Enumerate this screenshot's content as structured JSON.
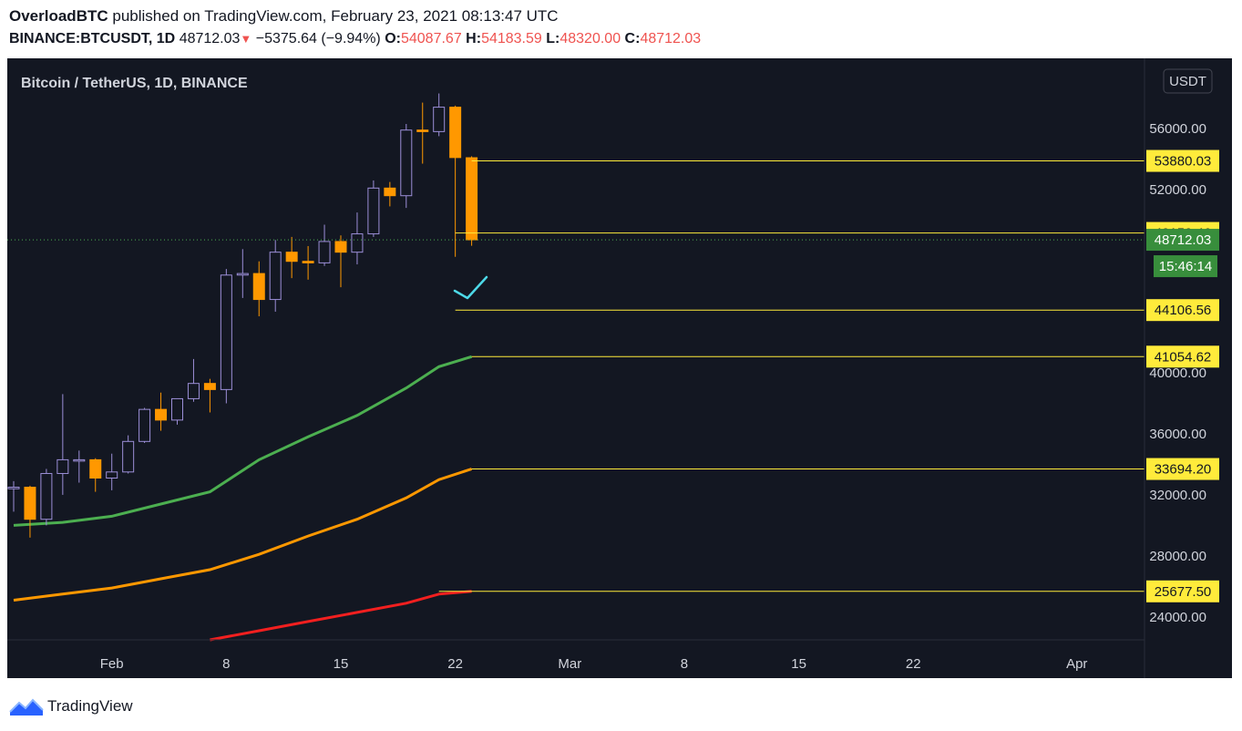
{
  "header": {
    "author": "OverloadBTC",
    "published": "published on TradingView.com, February 23, 2021 08:13:47 UTC",
    "symbol": "BINANCE:BTCUSDT, 1D",
    "last": "48712.03",
    "change": "−5375.64 (−9.94%)",
    "open_label": "O:",
    "open": "54087.67",
    "high_label": "H:",
    "high": "54183.59",
    "low_label": "L:",
    "low": "48320.00",
    "close_label": "C:",
    "close": "48712.03"
  },
  "footer": {
    "brand": "TradingView"
  },
  "colors": {
    "background": "#131722",
    "up": "#131722",
    "up_border": "#9c8fd8",
    "down": "#ff9800",
    "level_line": "#ffeb3b",
    "price_tag": "#388e3c"
  },
  "chart_data": {
    "type": "candlestick",
    "title": "Bitcoin / TetherUS, 1D, BINANCE",
    "currency": "USDT",
    "ylim": [
      22500,
      60600
    ],
    "y_ticks": [
      "56000.00",
      "52000.00",
      "40000.00",
      "36000.00",
      "32000.00",
      "28000.00",
      "24000.00"
    ],
    "x_ticks": [
      "Feb",
      "8",
      "15",
      "22",
      "Mar",
      "8",
      "15",
      "22",
      "Apr"
    ],
    "candles": [
      {
        "date": "2021-01-26",
        "o": 32400,
        "h": 32900,
        "l": 30900,
        "c": 32500
      },
      {
        "date": "2021-01-27",
        "o": 32500,
        "h": 32600,
        "l": 29200,
        "c": 30400
      },
      {
        "date": "2021-01-28",
        "o": 30400,
        "h": 33700,
        "l": 30000,
        "c": 33400
      },
      {
        "date": "2021-01-29",
        "o": 33400,
        "h": 38600,
        "l": 32000,
        "c": 34300
      },
      {
        "date": "2021-01-30",
        "o": 34300,
        "h": 34900,
        "l": 32800,
        "c": 34300
      },
      {
        "date": "2021-01-31",
        "o": 34300,
        "h": 34400,
        "l": 32200,
        "c": 33100
      },
      {
        "date": "2021-02-01",
        "o": 33100,
        "h": 34700,
        "l": 32300,
        "c": 33500
      },
      {
        "date": "2021-02-02",
        "o": 33500,
        "h": 35900,
        "l": 33400,
        "c": 35500
      },
      {
        "date": "2021-02-03",
        "o": 35500,
        "h": 37700,
        "l": 35400,
        "c": 37600
      },
      {
        "date": "2021-02-04",
        "o": 37600,
        "h": 38700,
        "l": 36200,
        "c": 36900
      },
      {
        "date": "2021-02-05",
        "o": 36900,
        "h": 38300,
        "l": 36600,
        "c": 38300
      },
      {
        "date": "2021-02-06",
        "o": 38300,
        "h": 40900,
        "l": 38100,
        "c": 39300
      },
      {
        "date": "2021-02-07",
        "o": 39300,
        "h": 39600,
        "l": 37400,
        "c": 38900
      },
      {
        "date": "2021-02-08",
        "o": 38900,
        "h": 46800,
        "l": 38000,
        "c": 46400
      },
      {
        "date": "2021-02-09",
        "o": 46400,
        "h": 48100,
        "l": 44900,
        "c": 46500
      },
      {
        "date": "2021-02-10",
        "o": 46500,
        "h": 47300,
        "l": 43700,
        "c": 44800
      },
      {
        "date": "2021-02-11",
        "o": 44800,
        "h": 48700,
        "l": 44000,
        "c": 47900
      },
      {
        "date": "2021-02-12",
        "o": 47900,
        "h": 48900,
        "l": 46200,
        "c": 47300
      },
      {
        "date": "2021-02-13",
        "o": 47300,
        "h": 48300,
        "l": 46100,
        "c": 47200
      },
      {
        "date": "2021-02-14",
        "o": 47200,
        "h": 49700,
        "l": 47000,
        "c": 48600
      },
      {
        "date": "2021-02-15",
        "o": 48600,
        "h": 49000,
        "l": 45600,
        "c": 47900
      },
      {
        "date": "2021-02-16",
        "o": 47900,
        "h": 50500,
        "l": 47100,
        "c": 49100
      },
      {
        "date": "2021-02-17",
        "o": 49100,
        "h": 52600,
        "l": 48900,
        "c": 52100
      },
      {
        "date": "2021-02-18",
        "o": 52100,
        "h": 52500,
        "l": 50900,
        "c": 51600
      },
      {
        "date": "2021-02-19",
        "o": 51600,
        "h": 56300,
        "l": 50800,
        "c": 55900
      },
      {
        "date": "2021-02-20",
        "o": 55900,
        "h": 57700,
        "l": 53700,
        "c": 55800
      },
      {
        "date": "2021-02-21",
        "o": 55800,
        "h": 58300,
        "l": 55500,
        "c": 57400
      },
      {
        "date": "2021-02-22",
        "o": 57400,
        "h": 57500,
        "l": 47600,
        "c": 54100
      },
      {
        "date": "2021-02-23",
        "o": 54087.67,
        "h": 54183.59,
        "l": 48320.0,
        "c": 48712.03
      }
    ],
    "current_price": "48712.03",
    "countdown": "15:46:14",
    "levels": [
      {
        "label": "53880.03",
        "value": 53880.03,
        "from": "2021-02-23"
      },
      {
        "label": "49159.46",
        "value": 49159.46,
        "from": "2021-02-22"
      },
      {
        "label": "44106.56",
        "value": 44106.56,
        "from": "2021-02-22"
      },
      {
        "label": "41054.62",
        "value": 41054.62,
        "from": "2021-02-23"
      },
      {
        "label": "33694.20",
        "value": 33694.2,
        "from": "2021-02-23"
      },
      {
        "label": "25677.50",
        "value": 25677.5,
        "from": "2021-02-21"
      }
    ],
    "moving_averages": [
      {
        "color": "#4caf50",
        "points": [
          [
            "2021-01-26",
            30000
          ],
          [
            "2021-01-29",
            30200
          ],
          [
            "2021-02-01",
            30600
          ],
          [
            "2021-02-04",
            31400
          ],
          [
            "2021-02-07",
            32200
          ],
          [
            "2021-02-10",
            34300
          ],
          [
            "2021-02-13",
            35800
          ],
          [
            "2021-02-16",
            37200
          ],
          [
            "2021-02-19",
            39000
          ],
          [
            "2021-02-21",
            40400
          ],
          [
            "2021-02-23",
            41054.62
          ]
        ]
      },
      {
        "color": "#ff9800",
        "points": [
          [
            "2021-01-26",
            25100
          ],
          [
            "2021-01-29",
            25500
          ],
          [
            "2021-02-01",
            25900
          ],
          [
            "2021-02-04",
            26500
          ],
          [
            "2021-02-07",
            27100
          ],
          [
            "2021-02-10",
            28100
          ],
          [
            "2021-02-13",
            29300
          ],
          [
            "2021-02-16",
            30400
          ],
          [
            "2021-02-19",
            31800
          ],
          [
            "2021-02-21",
            33000
          ],
          [
            "2021-02-23",
            33694.2
          ]
        ]
      },
      {
        "color": "#f21f1f",
        "points": [
          [
            "2021-02-07",
            22500
          ],
          [
            "2021-02-10",
            23100
          ],
          [
            "2021-02-13",
            23700
          ],
          [
            "2021-02-16",
            24300
          ],
          [
            "2021-02-19",
            24900
          ],
          [
            "2021-02-21",
            25500
          ],
          [
            "2021-02-23",
            25677.5
          ]
        ]
      }
    ],
    "annotation": {
      "type": "check-mark",
      "color": "#4dd9e8"
    }
  }
}
